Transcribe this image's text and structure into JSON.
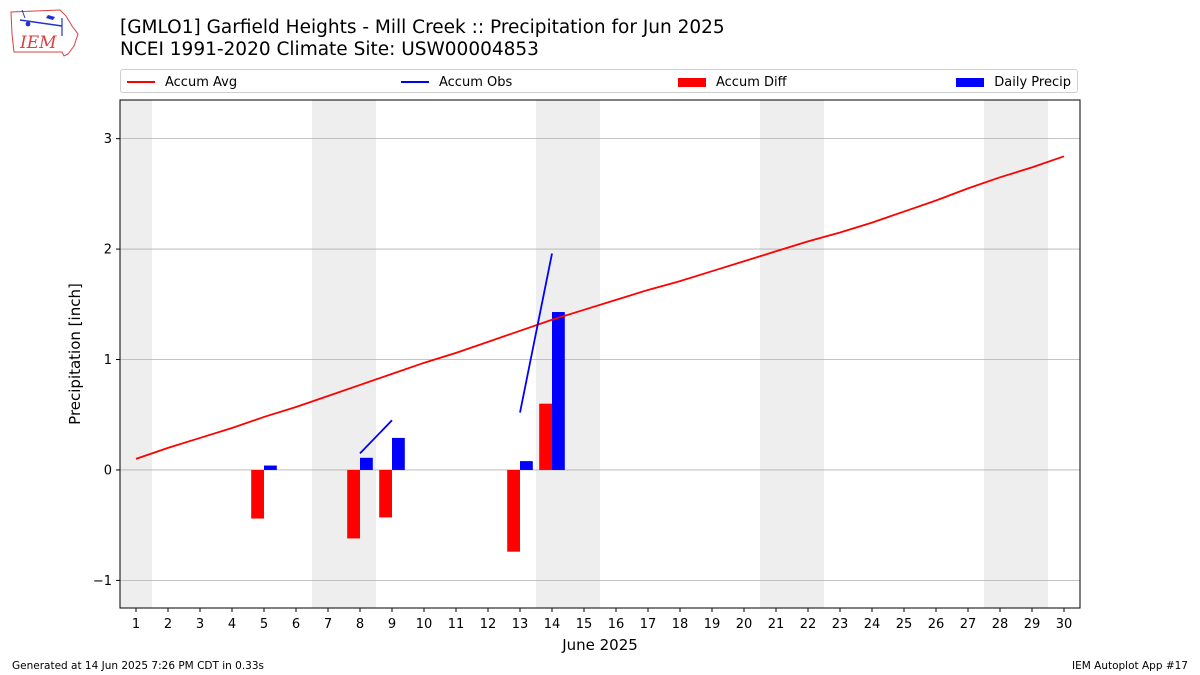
{
  "header": {
    "title_line1": "[GMLO1] Garfield Heights - Mill Creek :: Precipitation for Jun 2025",
    "title_line2": "NCEI 1991-2020 Climate Site: USW00004853",
    "logo_text": "IEM"
  },
  "footer": {
    "generated": "Generated at 14 Jun 2025 7:26 PM CDT in 0.33s",
    "app": "IEM Autoplot App #17"
  },
  "chart_data": {
    "type": "bar",
    "xlabel": "June 2025",
    "ylabel": "Precipitation [inch]",
    "xlim": [
      0.5,
      30.5
    ],
    "ylim": [
      -1.25,
      3.35
    ],
    "yticks": [
      -1,
      0,
      1,
      2,
      3
    ],
    "ytick_labels": [
      "−1",
      "0",
      "1",
      "2",
      "3"
    ],
    "days": [
      1,
      2,
      3,
      4,
      5,
      6,
      7,
      8,
      9,
      10,
      11,
      12,
      13,
      14,
      15,
      16,
      17,
      18,
      19,
      20,
      21,
      22,
      23,
      24,
      25,
      26,
      27,
      28,
      29,
      30
    ],
    "weekend_days": [
      [
        1,
        1
      ],
      [
        7,
        8
      ],
      [
        14,
        15
      ],
      [
        21,
        22
      ],
      [
        28,
        29
      ]
    ],
    "grid": "horizontal",
    "legend_position": "top",
    "colors": {
      "accum_avg": "#ff0000",
      "accum_obs": "#0000ff",
      "accum_diff": "#ff0000",
      "daily_precip": "#0000ff",
      "weekend": "#eeeeee",
      "grid": "#b0b0b0"
    },
    "series": [
      {
        "name": "Accum Avg",
        "kind": "line",
        "x": [
          1,
          2,
          3,
          4,
          5,
          6,
          7,
          8,
          9,
          10,
          11,
          12,
          13,
          14,
          15,
          16,
          17,
          18,
          19,
          20,
          21,
          22,
          23,
          24,
          25,
          26,
          27,
          28,
          29,
          30
        ],
        "values": [
          0.1,
          0.2,
          0.29,
          0.38,
          0.48,
          0.57,
          0.67,
          0.77,
          0.87,
          0.97,
          1.06,
          1.16,
          1.26,
          1.36,
          1.45,
          1.54,
          1.63,
          1.71,
          1.8,
          1.89,
          1.98,
          2.07,
          2.15,
          2.24,
          2.34,
          2.44,
          2.55,
          2.65,
          2.74,
          2.84
        ]
      },
      {
        "name": "Accum Obs",
        "kind": "line",
        "x": [
          8,
          9,
          13,
          14
        ],
        "values": [
          0.15,
          0.45,
          0.52,
          1.96
        ],
        "segments": [
          [
            8,
            9
          ],
          [
            13,
            14
          ]
        ]
      },
      {
        "name": "Accum Diff",
        "kind": "bar",
        "x": [
          5,
          8,
          9,
          13,
          14
        ],
        "values": [
          -0.44,
          -0.62,
          -0.43,
          -0.74,
          0.6
        ]
      },
      {
        "name": "Daily Precip",
        "kind": "bar",
        "x": [
          5,
          8,
          9,
          13,
          14
        ],
        "values": [
          0.04,
          0.11,
          0.29,
          0.08,
          1.43
        ]
      }
    ]
  }
}
